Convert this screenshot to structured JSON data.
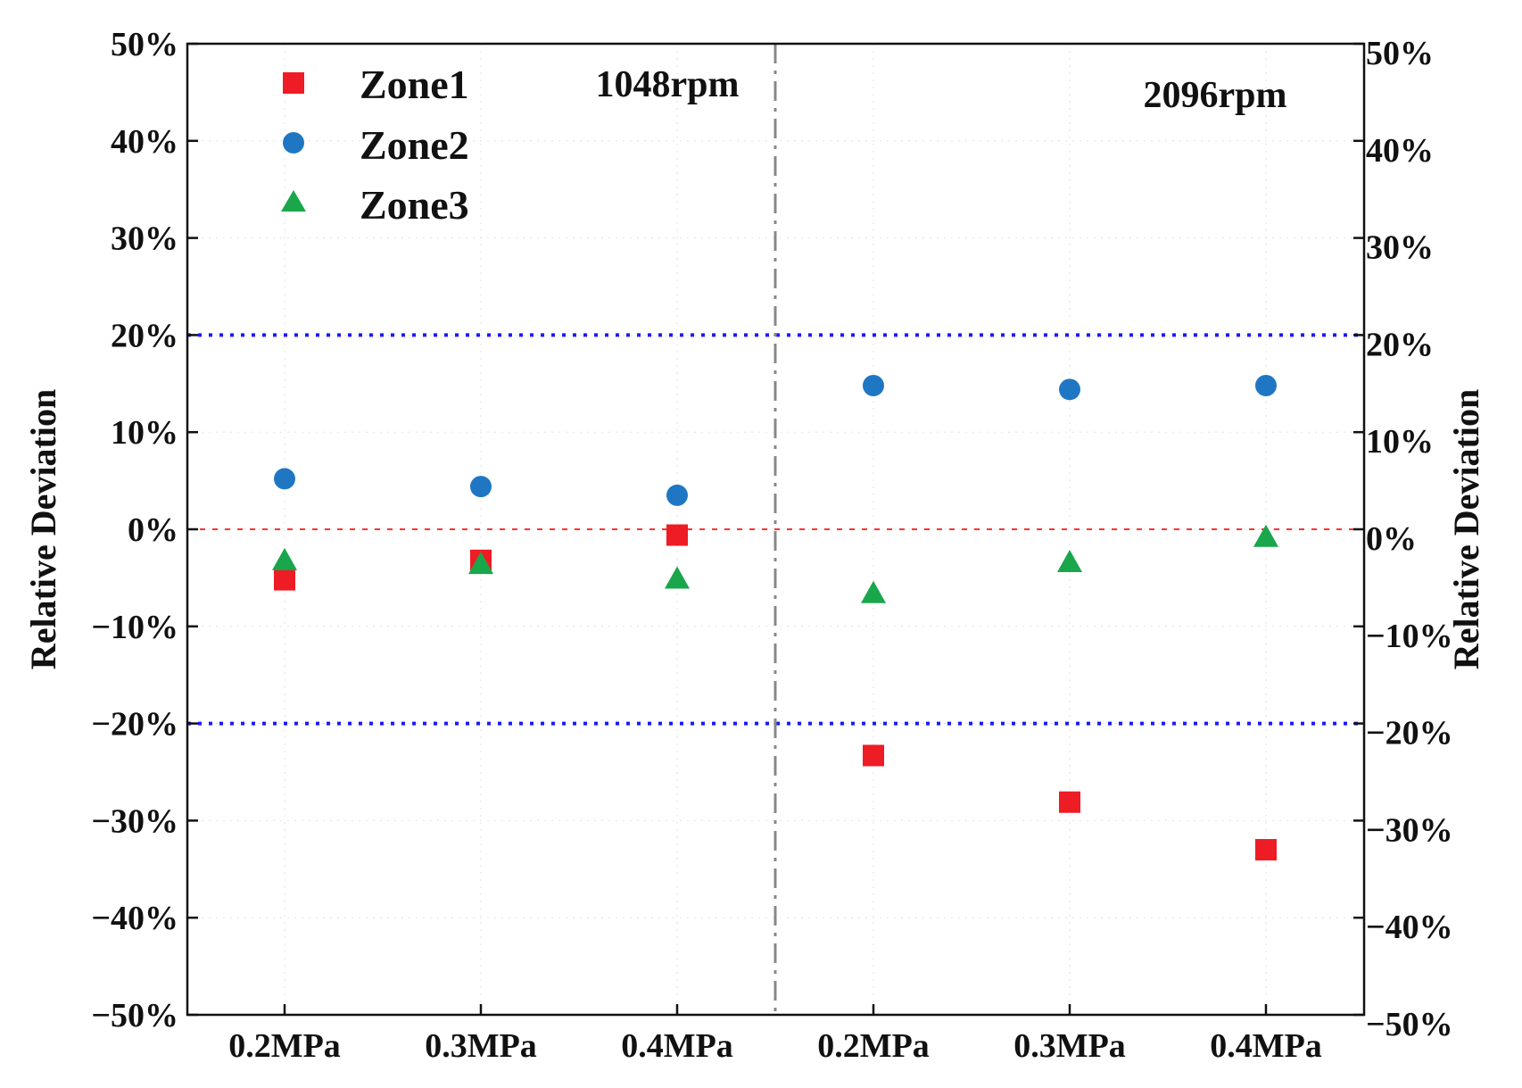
{
  "chart_data": {
    "type": "scatter",
    "categories": [
      "0.2MPa",
      "0.3MPa",
      "0.4MPa",
      "0.2MPa",
      "0.3MPa",
      "0.4MPa"
    ],
    "groups": [
      {
        "label": "1048rpm",
        "category_indices": [
          0,
          1,
          2
        ]
      },
      {
        "label": "2096rpm",
        "category_indices": [
          3,
          4,
          5
        ]
      }
    ],
    "series": [
      {
        "name": "Zone1",
        "marker": "square",
        "color": "#ee1c25",
        "values": [
          -5.2,
          -3.2,
          -0.6,
          -23.3,
          -28.1,
          -33.0
        ]
      },
      {
        "name": "Zone2",
        "marker": "circle",
        "color": "#1f77c4",
        "values": [
          5.2,
          4.4,
          3.5,
          14.8,
          14.4,
          14.8
        ]
      },
      {
        "name": "Zone3",
        "marker": "triangle",
        "color": "#1aa64b",
        "values": [
          -3.2,
          -3.6,
          -5.1,
          -6.6,
          -3.4,
          -0.8
        ]
      }
    ],
    "ylabel": "Relative Deviation",
    "ylabel_right": "Relative Deviation",
    "ylim": [
      -50,
      50
    ],
    "yticks": [
      -50,
      -40,
      -30,
      -20,
      -10,
      0,
      10,
      20,
      30,
      40,
      50
    ],
    "ytick_labels": [
      "−50%",
      "−40%",
      "−30%",
      "−20%",
      "−10%",
      "0%",
      "10%",
      "20%",
      "30%",
      "40%",
      "50%"
    ],
    "reference_lines": [
      {
        "value": 20,
        "style": "dotted",
        "color": "#1a1aff"
      },
      {
        "value": -20,
        "style": "dotted",
        "color": "#1a1aff"
      },
      {
        "value": 0,
        "style": "dashed",
        "color": "#ff3333"
      }
    ],
    "divider": {
      "style": "dash-dot",
      "color": "#888888",
      "between_categories": [
        2,
        3
      ]
    },
    "legend_position": "top-left"
  }
}
